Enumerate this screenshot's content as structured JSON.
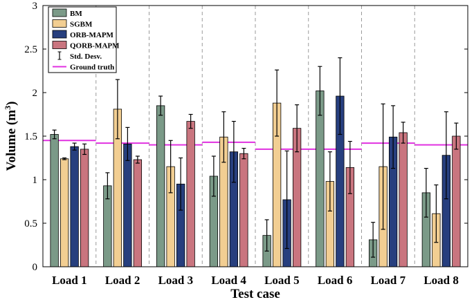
{
  "chart_data": {
    "type": "bar",
    "categories": [
      "Load 1",
      "Load 2",
      "Load 3",
      "Load 4",
      "Load 5",
      "Load 6",
      "Load 7",
      "Load 8"
    ],
    "series": [
      {
        "name": "BM",
        "color": "#7b9a88",
        "values": [
          1.52,
          0.93,
          1.85,
          1.04,
          0.36,
          2.02,
          0.31,
          0.85
        ],
        "std": [
          0.05,
          0.15,
          0.11,
          0.23,
          0.18,
          0.28,
          0.2,
          0.28
        ]
      },
      {
        "name": "SGBM",
        "color": "#f2ce92",
        "values": [
          1.24,
          1.81,
          1.15,
          1.49,
          1.88,
          0.98,
          1.15,
          0.61
        ],
        "std": [
          0.01,
          0.34,
          0.3,
          0.29,
          0.38,
          0.34,
          0.72,
          0.33
        ]
      },
      {
        "name": "ORB-MAPM",
        "color": "#273f7e",
        "values": [
          1.38,
          1.41,
          0.95,
          1.32,
          0.77,
          1.96,
          1.49,
          1.28
        ],
        "std": [
          0.04,
          0.19,
          0.3,
          0.35,
          0.56,
          0.44,
          0.36,
          0.5
        ]
      },
      {
        "name": "QORB-MAPM",
        "color": "#c9757f",
        "values": [
          1.35,
          1.23,
          1.67,
          1.3,
          1.59,
          1.14,
          1.54,
          1.5
        ],
        "std": [
          0.06,
          0.04,
          0.08,
          0.06,
          0.27,
          0.3,
          0.12,
          0.15
        ]
      }
    ],
    "ground_truth": [
      1.45,
      1.42,
      1.4,
      1.43,
      1.35,
      1.35,
      1.42,
      1.4
    ],
    "legend_std_label": "Std. Desv.",
    "legend_gt_label": "Ground truth",
    "ground_truth_color": "#e030e0",
    "xlabel": "Test case",
    "ylabel_base": "Volume (m",
    "ylabel_sup": "3",
    "ylabel_close": ")",
    "ylim": [
      0,
      3
    ],
    "yticks": [
      "0",
      "0.5",
      "1",
      "1.5",
      "2",
      "2.5",
      "3"
    ],
    "grid": "vertical dashed separators between categories",
    "legend_position": "top-left"
  }
}
